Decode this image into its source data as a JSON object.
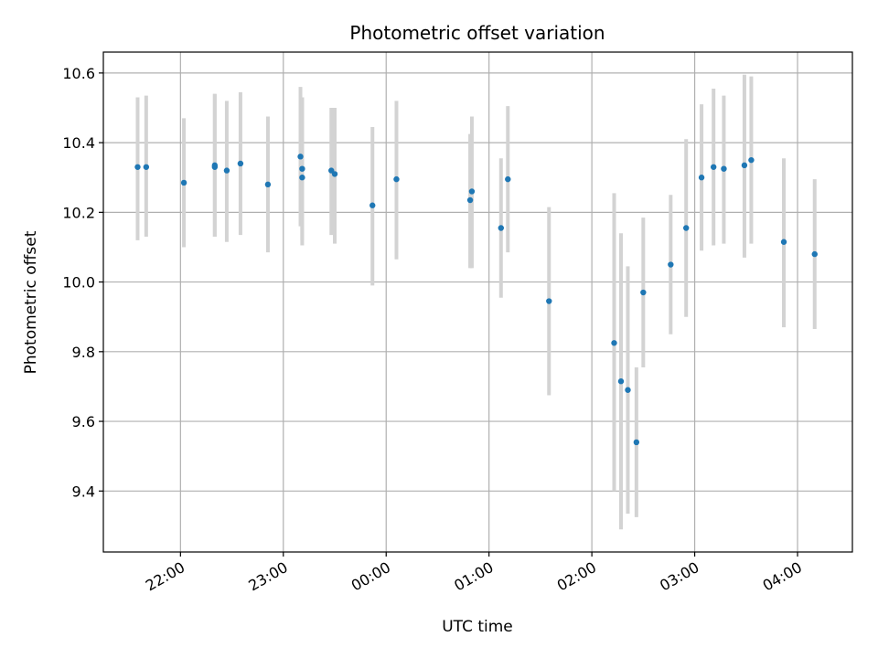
{
  "chart_data": {
    "type": "scatter",
    "title": "Photometric offset variation",
    "xlabel": "UTC time",
    "ylabel": "Photometric offset",
    "grid": true,
    "xlim": [
      "21:15",
      "04:32"
    ],
    "ylim": [
      9.225,
      10.66
    ],
    "x_ticks": [
      "22:00",
      "23:00",
      "00:00",
      "01:00",
      "02:00",
      "03:00",
      "04:00"
    ],
    "y_ticks": [
      "9.4",
      "9.6",
      "9.8",
      "10.0",
      "10.2",
      "10.4",
      "10.6"
    ],
    "colors": {
      "point": "#1f77b4",
      "errorbar": "#d3d3d3",
      "grid": "#b0b0b0"
    },
    "series": [
      {
        "points": [
          {
            "x": "21:35",
            "y": 10.33,
            "lo": 10.12,
            "hi": 10.53
          },
          {
            "x": "21:40",
            "y": 10.33,
            "lo": 10.13,
            "hi": 10.535
          },
          {
            "x": "22:02",
            "y": 10.285,
            "lo": 10.1,
            "hi": 10.47
          },
          {
            "x": "22:20",
            "y": 10.335,
            "lo": 10.13,
            "hi": 10.54
          },
          {
            "x": "22:20",
            "y": 10.33,
            "lo": 10.13,
            "hi": 10.54
          },
          {
            "x": "22:27",
            "y": 10.32,
            "lo": 10.115,
            "hi": 10.52
          },
          {
            "x": "22:35",
            "y": 10.34,
            "lo": 10.135,
            "hi": 10.545
          },
          {
            "x": "22:51",
            "y": 10.28,
            "lo": 10.085,
            "hi": 10.475
          },
          {
            "x": "23:10",
            "y": 10.36,
            "lo": 10.16,
            "hi": 10.56
          },
          {
            "x": "23:11",
            "y": 10.3,
            "lo": 10.105,
            "hi": 10.53
          },
          {
            "x": "23:11",
            "y": 10.325,
            "lo": 10.12,
            "hi": 10.53
          },
          {
            "x": "23:28",
            "y": 10.32,
            "lo": 10.135,
            "hi": 10.5
          },
          {
            "x": "23:30",
            "y": 10.31,
            "lo": 10.11,
            "hi": 10.5
          },
          {
            "x": "23:52",
            "y": 10.22,
            "lo": 9.99,
            "hi": 10.445
          },
          {
            "x": "00:06",
            "y": 10.295,
            "lo": 10.065,
            "hi": 10.52
          },
          {
            "x": "00:49",
            "y": 10.235,
            "lo": 10.04,
            "hi": 10.425
          },
          {
            "x": "00:50",
            "y": 10.26,
            "lo": 10.04,
            "hi": 10.475
          },
          {
            "x": "01:07",
            "y": 10.155,
            "lo": 9.955,
            "hi": 10.355
          },
          {
            "x": "01:11",
            "y": 10.295,
            "lo": 10.085,
            "hi": 10.505
          },
          {
            "x": "01:35",
            "y": 9.945,
            "lo": 9.675,
            "hi": 10.215
          },
          {
            "x": "02:13",
            "y": 9.825,
            "lo": 9.4,
            "hi": 10.255
          },
          {
            "x": "02:17",
            "y": 9.715,
            "lo": 9.29,
            "hi": 10.14
          },
          {
            "x": "02:21",
            "y": 9.69,
            "lo": 9.335,
            "hi": 10.045
          },
          {
            "x": "02:26",
            "y": 9.54,
            "lo": 9.325,
            "hi": 9.755
          },
          {
            "x": "02:30",
            "y": 9.97,
            "lo": 9.755,
            "hi": 10.185
          },
          {
            "x": "02:46",
            "y": 10.05,
            "lo": 9.85,
            "hi": 10.25
          },
          {
            "x": "02:55",
            "y": 10.155,
            "lo": 9.9,
            "hi": 10.41
          },
          {
            "x": "03:04",
            "y": 10.3,
            "lo": 10.09,
            "hi": 10.51
          },
          {
            "x": "03:11",
            "y": 10.33,
            "lo": 10.105,
            "hi": 10.555
          },
          {
            "x": "03:17",
            "y": 10.325,
            "lo": 10.11,
            "hi": 10.535
          },
          {
            "x": "03:29",
            "y": 10.335,
            "lo": 10.07,
            "hi": 10.595
          },
          {
            "x": "03:33",
            "y": 10.35,
            "lo": 10.11,
            "hi": 10.59
          },
          {
            "x": "03:52",
            "y": 10.115,
            "lo": 9.87,
            "hi": 10.355
          },
          {
            "x": "04:10",
            "y": 10.08,
            "lo": 9.865,
            "hi": 10.295
          }
        ]
      }
    ]
  }
}
